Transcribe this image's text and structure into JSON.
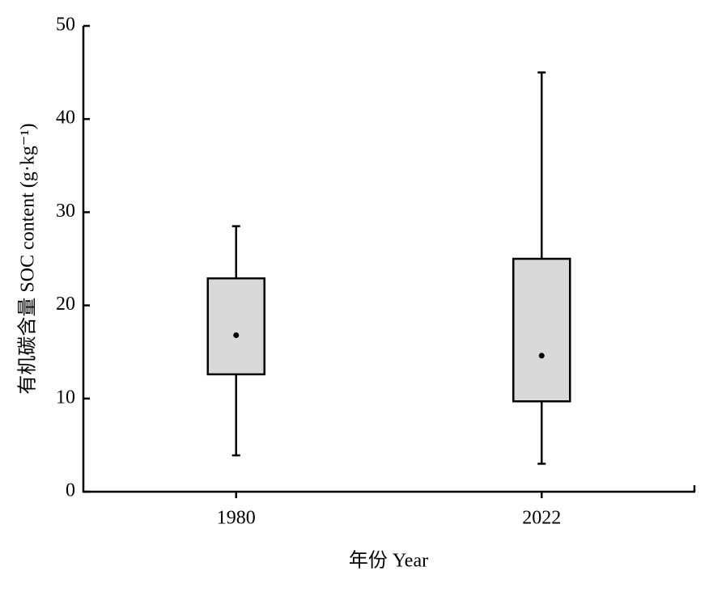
{
  "chart_data": {
    "type": "box",
    "x_label": "年份 Year",
    "y_label": "有机碳含量 SOC content (g·kg⁻¹)",
    "categories": [
      "1980",
      "2022"
    ],
    "min": [
      3.9,
      3.0
    ],
    "q1": [
      12.6,
      9.7
    ],
    "median": [
      16.8,
      14.6
    ],
    "q3": [
      22.9,
      25.0
    ],
    "max": [
      28.5,
      45.0
    ],
    "color": "#d9d9d9",
    "ylim": [
      0,
      50
    ],
    "yticks": [
      0,
      10,
      20,
      30,
      40,
      50
    ]
  }
}
